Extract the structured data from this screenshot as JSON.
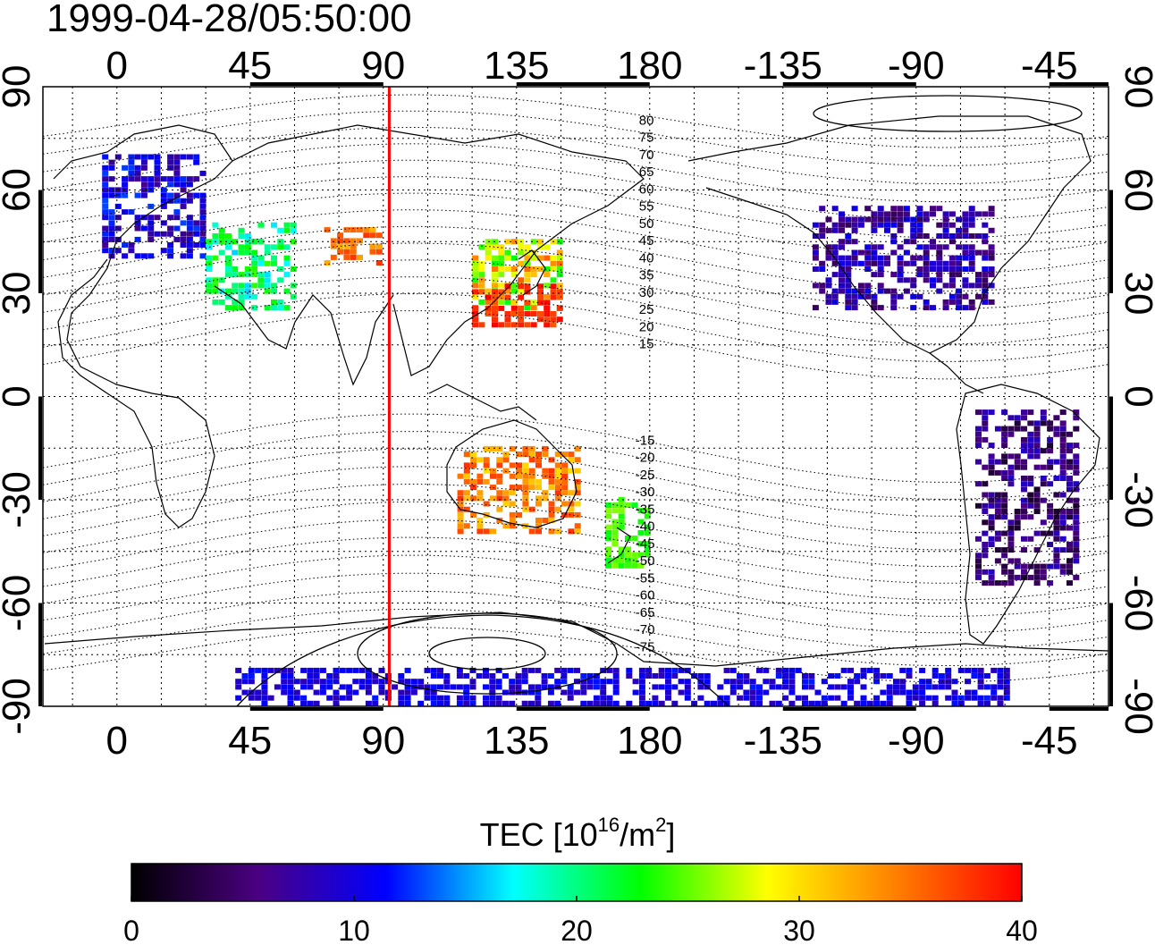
{
  "title": "1999-04-28/05:50:00",
  "map": {
    "lon_ticks": [
      "0",
      "45",
      "90",
      "135",
      "180",
      "-135",
      "-90",
      "-45"
    ],
    "lat_ticks": [
      "90",
      "60",
      "30",
      "0",
      "-30",
      "-60",
      "-90"
    ],
    "meridian_marker_lon": 92,
    "meridian_marker_color": "#ff0000",
    "magnetic_lat_labels_north": [
      "80",
      "75",
      "70",
      "65",
      "60",
      "55",
      "50",
      "45",
      "40",
      "35",
      "30",
      "25",
      "20",
      "15"
    ],
    "magnetic_lat_labels_south": [
      "-15",
      "-20",
      "-25",
      "-30",
      "-35",
      "-40",
      "-45",
      "-50",
      "-55",
      "-60",
      "-65",
      "-70",
      "-75"
    ]
  },
  "colorbar": {
    "label_main": "TEC  [10",
    "label_sup1": "16",
    "label_mid": "/m",
    "label_sup2": "2",
    "label_end": "]",
    "ticks": [
      "0",
      "10",
      "20",
      "30",
      "40"
    ],
    "min": 0,
    "max": 40,
    "colors": [
      "#000000",
      "#4b0082",
      "#0000ff",
      "#00ffff",
      "#00ff00",
      "#ffff00",
      "#ff8000",
      "#ff0000"
    ]
  },
  "chart_data": {
    "type": "heatmap",
    "title": "1999-04-28/05:50:00",
    "xlim": [
      -25,
      335
    ],
    "ylim": [
      -90,
      90
    ],
    "value_range": [
      0,
      40
    ],
    "regions": [
      {
        "lon": [
          -5,
          30
        ],
        "lat": [
          40,
          70
        ],
        "tec": [
          6,
          13
        ]
      },
      {
        "lon": [
          30,
          60
        ],
        "lat": [
          25,
          50
        ],
        "tec": [
          16,
          24
        ]
      },
      {
        "lon": [
          70,
          88
        ],
        "lat": [
          38,
          48
        ],
        "tec": [
          32,
          38
        ]
      },
      {
        "lon": [
          120,
          150
        ],
        "lat": [
          25,
          45
        ],
        "tec": [
          22,
          36
        ]
      },
      {
        "lon": [
          120,
          150
        ],
        "lat": [
          20,
          32
        ],
        "tec": [
          36,
          40
        ]
      },
      {
        "lon": [
          115,
          155
        ],
        "lat": [
          -40,
          -15
        ],
        "tec": [
          30,
          38
        ]
      },
      {
        "lon": [
          165,
          180
        ],
        "lat": [
          -50,
          -30
        ],
        "tec": [
          22,
          26
        ]
      },
      {
        "lon": [
          -125,
          -65
        ],
        "lat": [
          25,
          55
        ],
        "tec": [
          4,
          11
        ]
      },
      {
        "lon": [
          -70,
          -35
        ],
        "lat": [
          -55,
          -5
        ],
        "tec": [
          2,
          9
        ]
      },
      {
        "lon": [
          40,
          300
        ],
        "lat": [
          -90,
          -80
        ],
        "tec": [
          8,
          12
        ]
      }
    ]
  }
}
